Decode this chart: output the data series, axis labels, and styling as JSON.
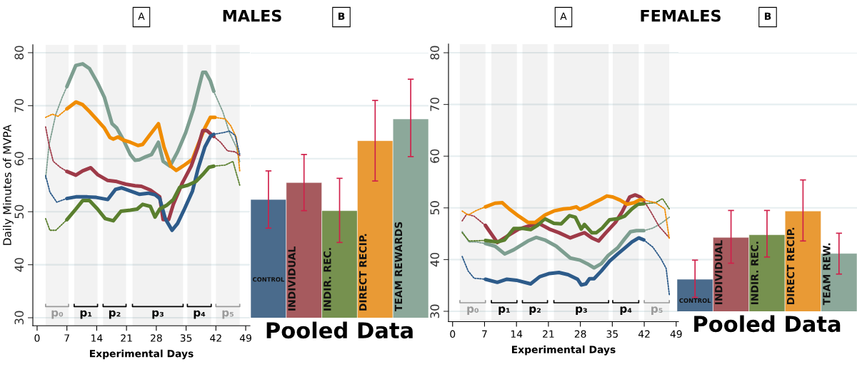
{
  "chart_data": [
    {
      "type": "line",
      "title": "MALES",
      "annotations": [
        "A"
      ],
      "xlabel": "Experimental Days",
      "ylabel": "Daily Minutes of MVPA",
      "xlim": [
        -1,
        50
      ],
      "xticks": [
        0,
        7,
        14,
        21,
        28,
        35,
        42,
        49
      ],
      "ylim": [
        28.5,
        81.5
      ],
      "yticks": [
        30,
        40,
        50,
        60,
        70,
        80
      ],
      "grid": "y",
      "bands": [
        {
          "axis": "x",
          "from": 2.0,
          "to": 7.4,
          "label": "p₀",
          "color": "#9a9a9a"
        },
        {
          "axis": "x",
          "from": 8.7,
          "to": 14.2,
          "label": "p₁",
          "color": "#000000"
        },
        {
          "axis": "x",
          "from": 15.5,
          "to": 20.9,
          "label": "p₂",
          "color": "#000000"
        },
        {
          "axis": "x",
          "from": 22.4,
          "to": 34.3,
          "label": "p₃",
          "color": "#000000"
        },
        {
          "axis": "x",
          "from": 35.3,
          "to": 40.9,
          "label": "p₄",
          "color": "#000000"
        },
        {
          "axis": "x",
          "from": 42.0,
          "to": 47.6,
          "label": "p₅",
          "color": "#9a9a9a"
        }
      ],
      "series": [
        {
          "color": "#7d9e90",
          "line_style": "solid",
          "x": [
            7.0,
            9.1,
            10.7,
            12.3,
            14.2,
            15.8,
            17.6,
            18.7,
            20.3,
            21.9,
            23.0,
            24.0,
            25.6,
            26.9,
            28.5,
            29.6,
            31.2,
            33.0,
            34.9,
            36.7,
            38.1,
            38.9,
            39.6,
            40.7,
            41.5
          ],
          "values": [
            73.6,
            77.6,
            77.9,
            77.0,
            74.3,
            71.6,
            66.6,
            65.8,
            63.5,
            60.8,
            59.7,
            59.8,
            60.4,
            60.8,
            63.1,
            59.5,
            58.6,
            61.3,
            64.9,
            69.3,
            73.8,
            76.3,
            76.3,
            74.7,
            72.7
          ]
        },
        {
          "color": "#f08c00",
          "line_style": "solid",
          "x": [
            7.0,
            9.1,
            10.7,
            12.3,
            13.9,
            15.8,
            17.1,
            17.9,
            19.0,
            20.3,
            21.9,
            23.7,
            24.8,
            26.4,
            28.5,
            29.8,
            31.4,
            32.7,
            34.6,
            36.5,
            37.8,
            39.4,
            40.7,
            41.8
          ],
          "values": [
            69.4,
            70.7,
            70.2,
            68.9,
            67.5,
            65.8,
            64.0,
            63.7,
            64.1,
            63.5,
            63.1,
            62.5,
            62.7,
            64.4,
            66.6,
            62.2,
            58.6,
            57.8,
            58.8,
            59.9,
            62.6,
            65.8,
            67.8,
            67.8
          ]
        },
        {
          "color": "#9e3a48",
          "line_style": "solid",
          "x": [
            7.0,
            9.1,
            10.7,
            12.6,
            14.2,
            16.6,
            18.7,
            20.8,
            23.0,
            24.5,
            26.6,
            28.8,
            29.6,
            30.9,
            32.0,
            34.1,
            36.2,
            37.8,
            38.9,
            39.9,
            41.5
          ],
          "values": [
            57.6,
            56.9,
            57.7,
            58.3,
            57.0,
            55.9,
            55.7,
            55.2,
            54.9,
            54.8,
            54.1,
            52.8,
            48.5,
            48.5,
            51.4,
            55.4,
            58.6,
            62.2,
            65.3,
            65.3,
            64.2
          ]
        },
        {
          "color": "#2d5b8a",
          "line_style": "solid",
          "x": [
            7.0,
            9.1,
            11.8,
            13.9,
            16.6,
            18.4,
            19.8,
            21.9,
            24.0,
            26.1,
            27.7,
            28.8,
            30.1,
            31.7,
            33.0,
            34.6,
            36.5,
            37.8,
            39.4,
            40.7,
            41.5
          ],
          "values": [
            52.5,
            52.8,
            52.8,
            52.7,
            52.3,
            54.2,
            54.5,
            53.9,
            53.3,
            53.5,
            53.2,
            52.5,
            48.7,
            46.5,
            47.8,
            50.5,
            53.9,
            58.1,
            62.2,
            64.2,
            64.6
          ]
        },
        {
          "color": "#5a7f2e",
          "line_style": "solid",
          "x": [
            7.0,
            9.1,
            10.7,
            12.3,
            14.2,
            16.0,
            17.9,
            19.7,
            21.9,
            23.5,
            24.8,
            26.6,
            27.7,
            28.8,
            30.4,
            32.0,
            33.5,
            35.4,
            37.3,
            38.9,
            40.4,
            41.5
          ],
          "values": [
            48.5,
            50.5,
            52.1,
            52.1,
            50.5,
            48.7,
            48.3,
            50.1,
            50.3,
            50.5,
            51.4,
            51.0,
            49.0,
            50.5,
            51.2,
            52.3,
            54.6,
            55.0,
            55.7,
            57.0,
            58.4,
            58.6
          ]
        },
        {
          "color": "#7d9e90",
          "line_style": "dotted",
          "x": [
            2.0,
            2.8,
            4.4,
            5.9,
            7.0
          ],
          "values": [
            56.3,
            62.6,
            68.4,
            71.6,
            73.6
          ]
        },
        {
          "color": "#7d9e90",
          "line_style": "dotted",
          "x": [
            41.5,
            43.6,
            45.2,
            46.8,
            47.6
          ],
          "values": [
            72.7,
            68.9,
            64.9,
            62.2,
            59.5
          ]
        },
        {
          "color": "#f08c00",
          "line_style": "dotted",
          "x": [
            2.0,
            3.6,
            4.9,
            7.0
          ],
          "values": [
            67.8,
            68.4,
            68.0,
            69.4
          ]
        },
        {
          "color": "#f08c00",
          "line_style": "dotted",
          "x": [
            41.8,
            44.2,
            45.5,
            46.8,
            47.6
          ],
          "values": [
            67.8,
            67.5,
            66.2,
            64.0,
            57.7
          ]
        },
        {
          "color": "#9e3a48",
          "line_style": "dotted",
          "x": [
            2.0,
            2.8,
            3.8,
            5.4,
            7.0
          ],
          "values": [
            66.0,
            62.6,
            59.5,
            58.4,
            57.6
          ]
        },
        {
          "color": "#9e3a48",
          "line_style": "dotted",
          "x": [
            41.5,
            43.1,
            44.7,
            46.5,
            47.6
          ],
          "values": [
            64.2,
            63.1,
            61.5,
            61.3,
            60.6
          ]
        },
        {
          "color": "#2d5b8a",
          "line_style": "dotted",
          "x": [
            2.0,
            3.0,
            4.6,
            7.0
          ],
          "values": [
            56.8,
            53.7,
            51.8,
            52.5
          ]
        },
        {
          "color": "#2d5b8a",
          "line_style": "dotted",
          "x": [
            41.5,
            43.6,
            45.2,
            46.5,
            47.6
          ],
          "values": [
            64.6,
            64.9,
            65.2,
            64.4,
            60.8
          ]
        },
        {
          "color": "#5a7f2e",
          "line_style": "dotted",
          "x": [
            2.0,
            3.0,
            4.4,
            7.0
          ],
          "values": [
            48.7,
            46.5,
            46.5,
            48.5
          ]
        },
        {
          "color": "#5a7f2e",
          "line_style": "dotted",
          "x": [
            41.5,
            44.2,
            46.0,
            47.6
          ],
          "values": [
            58.6,
            58.8,
            59.5,
            55.0
          ]
        }
      ]
    },
    {
      "type": "bar",
      "annotations": [
        "B"
      ],
      "xlabel": "Pooled Data",
      "categories": [
        "CONTROL",
        "INDIVIDUAL",
        "INDIR. REC.",
        "DIRECT RECIP.",
        "TEAM REWARDS"
      ],
      "values": [
        52.3,
        55.5,
        50.2,
        63.4,
        67.5
      ],
      "colors": [
        "#4a6b8c",
        "#a65a5e",
        "#76914f",
        "#e99a35",
        "#8ca89a"
      ],
      "errors": [
        [
          46.9,
          57.7
        ],
        [
          50.2,
          60.8
        ],
        [
          44.2,
          56.3
        ],
        [
          55.8,
          71.0
        ],
        [
          60.4,
          75.0
        ]
      ],
      "ylim": [
        30,
        80
      ],
      "yticks": [
        30,
        40,
        50,
        60,
        70,
        80
      ],
      "grid": "y",
      "tick_labels": false
    },
    {
      "type": "line",
      "title": "FEMALES",
      "annotations": [
        "A"
      ],
      "xlabel": "Experimental Days",
      "xlim": [
        -0.9,
        49.5
      ],
      "xticks": [
        0,
        7,
        14,
        21,
        28,
        35,
        42,
        49
      ],
      "ylim": [
        28.0,
        81.7
      ],
      "yticks": [
        30,
        40,
        50,
        60,
        70,
        80
      ],
      "grid": "y",
      "bands": [
        {
          "axis": "x",
          "from": 1.6,
          "to": 7.2,
          "label": "p₀",
          "color": "#9a9a9a"
        },
        {
          "axis": "x",
          "from": 8.5,
          "to": 14.1,
          "label": "p₁",
          "color": "#000000"
        },
        {
          "axis": "x",
          "from": 15.3,
          "to": 20.8,
          "label": "p₂",
          "color": "#000000"
        },
        {
          "axis": "x",
          "from": 22.2,
          "to": 34.2,
          "label": "p₃",
          "color": "#000000"
        },
        {
          "axis": "x",
          "from": 35.1,
          "to": 40.8,
          "label": "p₄",
          "color": "#000000"
        },
        {
          "axis": "x",
          "from": 42.0,
          "to": 47.5,
          "label": "p₅",
          "color": "#9a9a9a"
        }
      ],
      "series": [
        {
          "color": "#2d5b8a",
          "line_style": "solid",
          "x": [
            7.2,
            9.8,
            11.9,
            14.0,
            17.1,
            19.1,
            21.2,
            23.3,
            25.3,
            27.4,
            28.2,
            29.2,
            30.0,
            31.0,
            32.6,
            34.4,
            36.2,
            37.7,
            39.3,
            40.8,
            41.9
          ],
          "values": [
            36.2,
            35.6,
            36.2,
            36.0,
            35.3,
            36.7,
            37.3,
            37.5,
            37.1,
            36.2,
            35.1,
            35.3,
            36.3,
            36.3,
            37.8,
            39.7,
            41.1,
            42.2,
            43.4,
            44.2,
            43.8
          ]
        },
        {
          "color": "#7d9e90",
          "line_style": "solid",
          "x": [
            7.2,
            9.3,
            11.4,
            13.4,
            16.5,
            18.3,
            20.2,
            22.7,
            25.8,
            27.9,
            29.5,
            31.0,
            32.6,
            34.1,
            36.2,
            37.7,
            39.0,
            40.3,
            41.9
          ],
          "values": [
            43.1,
            42.6,
            41.1,
            41.9,
            43.6,
            44.3,
            43.8,
            42.6,
            40.3,
            39.9,
            39.2,
            38.4,
            39.2,
            40.8,
            42.3,
            44.0,
            45.4,
            45.6,
            45.6
          ]
        },
        {
          "color": "#9e3a48",
          "line_style": "solid",
          "x": [
            7.2,
            9.8,
            11.9,
            14.5,
            17.1,
            19.1,
            21.2,
            23.3,
            25.8,
            27.9,
            28.9,
            30.5,
            32.0,
            33.6,
            35.7,
            37.2,
            38.8,
            40.0,
            41.1,
            41.9
          ],
          "values": [
            46.6,
            43.3,
            44.5,
            45.9,
            46.6,
            46.9,
            45.9,
            45.2,
            44.2,
            44.9,
            45.2,
            44.2,
            43.6,
            45.2,
            47.2,
            49.3,
            52.1,
            52.5,
            52.1,
            51.4
          ]
        },
        {
          "color": "#5a7f2e",
          "line_style": "solid",
          "x": [
            7.2,
            9.8,
            11.4,
            13.4,
            15.5,
            17.1,
            18.6,
            20.2,
            22.2,
            23.8,
            25.6,
            26.9,
            28.2,
            28.9,
            30.5,
            31.5,
            32.8,
            34.4,
            36.2,
            37.7,
            39.3,
            40.6,
            41.9
          ],
          "values": [
            43.7,
            43.4,
            43.8,
            46.0,
            46.0,
            45.8,
            46.6,
            47.9,
            47.0,
            46.9,
            48.5,
            48.2,
            45.9,
            46.8,
            45.2,
            45.2,
            46.1,
            47.7,
            47.9,
            48.4,
            49.8,
            50.7,
            50.8
          ]
        },
        {
          "color": "#f08c00",
          "line_style": "solid",
          "x": [
            7.2,
            9.3,
            10.9,
            12.4,
            14.5,
            16.5,
            18.1,
            20.2,
            22.2,
            24.3,
            25.8,
            27.1,
            27.9,
            29.5,
            31.0,
            32.6,
            33.8,
            35.1,
            36.7,
            38.2,
            39.8,
            41.1,
            41.9
          ],
          "values": [
            50.2,
            50.9,
            51.0,
            49.8,
            48.4,
            47.2,
            47.2,
            48.6,
            49.4,
            49.8,
            49.9,
            50.2,
            49.7,
            50.3,
            51.0,
            51.7,
            52.3,
            52.1,
            51.5,
            50.7,
            51.0,
            51.6,
            51.5
          ]
        },
        {
          "color": "#2d5b8a",
          "line_style": "dotted",
          "x": [
            2.1,
            3.4,
            4.7,
            7.2
          ],
          "values": [
            40.6,
            37.8,
            36.4,
            36.2
          ]
        },
        {
          "color": "#2d5b8a",
          "line_style": "dotted",
          "x": [
            41.9,
            43.9,
            45.7,
            46.8,
            47.5
          ],
          "values": [
            43.8,
            42.4,
            40.1,
            38.3,
            33.2
          ]
        },
        {
          "color": "#7d9e90",
          "line_style": "dotted",
          "x": [
            2.1,
            3.6,
            5.2,
            7.2
          ],
          "values": [
            45.4,
            43.4,
            43.4,
            43.1
          ]
        },
        {
          "color": "#7d9e90",
          "line_style": "dotted",
          "x": [
            41.9,
            43.9,
            45.7,
            47.5
          ],
          "values": [
            45.6,
            46.1,
            47.0,
            48.2
          ]
        },
        {
          "color": "#9e3a48",
          "line_style": "dotted",
          "x": [
            2.1,
            3.1,
            4.7,
            7.2
          ],
          "values": [
            47.5,
            48.8,
            48.4,
            46.6
          ]
        },
        {
          "color": "#9e3a48",
          "line_style": "dotted",
          "x": [
            41.9,
            43.4,
            45.2,
            47.5
          ],
          "values": [
            51.4,
            49.3,
            46.5,
            44.2
          ]
        },
        {
          "color": "#5a7f2e",
          "line_style": "dotted",
          "x": [
            2.1,
            3.6,
            7.2
          ],
          "values": [
            45.2,
            43.6,
            43.7
          ]
        },
        {
          "color": "#5a7f2e",
          "line_style": "dotted",
          "x": [
            41.9,
            44.5,
            46.0,
            47.5
          ],
          "values": [
            50.8,
            51.0,
            51.8,
            49.8
          ]
        },
        {
          "color": "#f08c00",
          "line_style": "dotted",
          "x": [
            2.1,
            3.4,
            5.2,
            7.2
          ],
          "values": [
            49.4,
            48.6,
            49.5,
            50.2
          ]
        },
        {
          "color": "#f08c00",
          "line_style": "dotted",
          "x": [
            41.9,
            44.5,
            46.5,
            47.5
          ],
          "values": [
            51.5,
            51.0,
            49.8,
            44.0
          ]
        }
      ]
    },
    {
      "type": "bar",
      "annotations": [
        "B"
      ],
      "xlabel": "Pooled Data",
      "categories": [
        "CONTROL",
        "INDIVIDUAL",
        "INDIR. REC.",
        "DIRECT RECIP.",
        "TEAM REW."
      ],
      "values": [
        36.2,
        44.3,
        44.8,
        49.4,
        41.2
      ],
      "colors": [
        "#4a6b8c",
        "#a65a5e",
        "#76914f",
        "#e99a35",
        "#8ca89a"
      ],
      "errors": [
        [
          32.7,
          39.9
        ],
        [
          39.3,
          49.5
        ],
        [
          40.5,
          49.5
        ],
        [
          43.6,
          55.4
        ],
        [
          37.2,
          45.1
        ]
      ],
      "ylim": [
        30,
        80
      ],
      "yticks": [
        30,
        40,
        50,
        60,
        70,
        80
      ],
      "grid": "y",
      "tick_labels": false
    }
  ]
}
